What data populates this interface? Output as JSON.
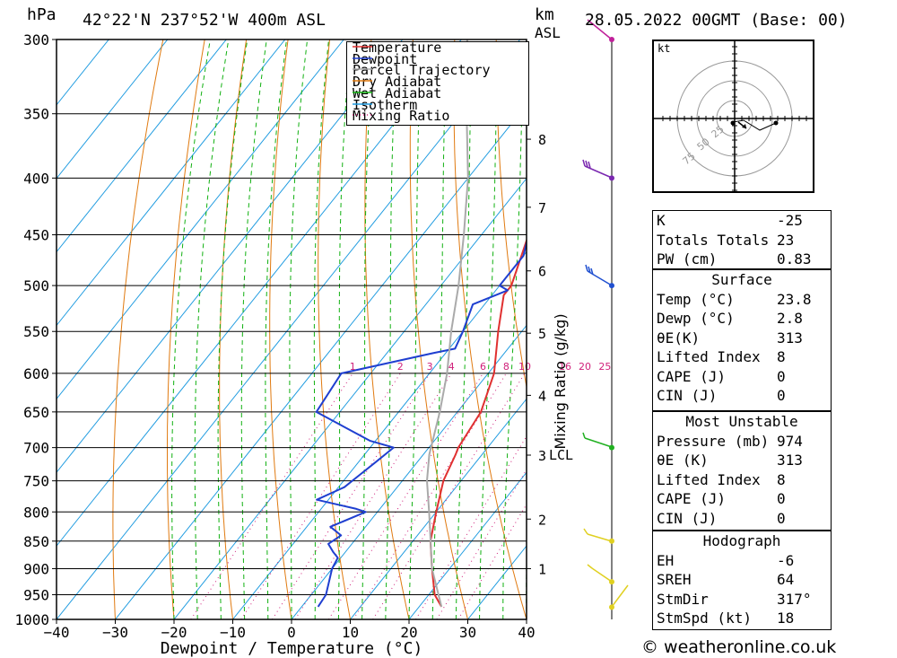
{
  "header": {
    "pressure_unit": "hPa",
    "location": "42°22'N  237°52'W  400m  ASL",
    "km_label": "km",
    "asl_label": "ASL",
    "datetime": "28.05.2022  00GMT  (Base: 00)"
  },
  "legend": [
    "Temperature",
    "Dewpoint",
    "Parcel Trajectory",
    "Dry Adiabat",
    "Wet Adiabat",
    "Isotherm",
    "Mixing Ratio"
  ],
  "colors": {
    "temperature": "#e03030",
    "dewpoint": "#1f3fd0",
    "parcel": "#aaaaaa",
    "dry_adiabat": "#e07a10",
    "wet_adiabat": "#10b010",
    "isotherm": "#1e9be0",
    "mixing_ratio": "#d0207a"
  },
  "hodograph": {
    "unit": "kt",
    "ring_labels": [
      "25",
      "50",
      "75"
    ]
  },
  "indices": {
    "k": {
      "label": "K",
      "value": "-25"
    },
    "tt": {
      "label": "Totals Totals",
      "value": "23"
    },
    "pw": {
      "label": "PW (cm)",
      "value": "0.83"
    },
    "surface": {
      "title": "Surface",
      "rows": [
        [
          "Temp (°C)",
          "23.8"
        ],
        [
          "Dewp (°C)",
          "2.8"
        ],
        [
          "θE(K)",
          "313"
        ],
        [
          "Lifted Index",
          "8"
        ],
        [
          "CAPE (J)",
          "0"
        ],
        [
          "CIN (J)",
          "0"
        ]
      ]
    },
    "most_unstable": {
      "title": "Most Unstable",
      "rows": [
        [
          "Pressure (mb)",
          "974"
        ],
        [
          "θE (K)",
          "313"
        ],
        [
          "Lifted Index",
          "8"
        ],
        [
          "CAPE (J)",
          "0"
        ],
        [
          "CIN (J)",
          "0"
        ]
      ]
    },
    "hodograph": {
      "title": "Hodograph",
      "rows": [
        [
          "EH",
          "-6"
        ],
        [
          "SREH",
          "64"
        ],
        [
          "StmDir",
          "317°"
        ],
        [
          "StmSpd (kt)",
          "18"
        ]
      ]
    }
  },
  "footer": "© weatheronline.co.uk",
  "chart_data": {
    "type": "line",
    "xlabel": "Dewpoint / Temperature (°C)",
    "ylabel": "hPa",
    "right_label": "Mixing Ratio (g/kg)",
    "xlim": [
      -40,
      40
    ],
    "ylim": [
      1000,
      300
    ],
    "x_ticks": [
      "−40",
      "−30",
      "−20",
      "−10",
      "0",
      "10",
      "20",
      "30",
      "40"
    ],
    "pressure_levels": [
      300,
      350,
      400,
      450,
      500,
      550,
      600,
      650,
      700,
      750,
      800,
      850,
      900,
      950,
      1000
    ],
    "km_ticks": [
      "1",
      "2",
      "3",
      "4",
      "5",
      "6",
      "7",
      "8"
    ],
    "km_pressures": [
      900,
      812,
      711,
      628,
      552,
      485,
      425,
      369
    ],
    "lcl_label": "LCL",
    "lcl_pressure": 710,
    "mixing_ratio_labels": [
      "1",
      "2",
      "3",
      "4",
      "6",
      "8",
      "10",
      "16",
      "20",
      "25"
    ],
    "series": [
      {
        "name": "Temperature",
        "p": [
          974,
          950,
          900,
          850,
          800,
          750,
          710,
          700,
          650,
          600,
          550,
          510,
          500,
          450,
          400,
          350,
          300
        ],
        "t": [
          23.8,
          21,
          17,
          13,
          10,
          7,
          5.5,
          5,
          4,
          1,
          -4,
          -8,
          -8,
          -12,
          -18,
          -27,
          -36
        ]
      },
      {
        "name": "Dewpoint",
        "p": [
          974,
          950,
          900,
          880,
          870,
          855,
          840,
          825,
          800,
          795,
          780,
          760,
          740,
          720,
          700,
          690,
          650,
          600,
          575,
          570,
          550,
          520,
          505,
          500,
          470,
          450,
          400,
          350,
          320,
          300
        ],
        "t": [
          2.8,
          2.5,
          0,
          -0.5,
          -2,
          -4,
          -3,
          -6,
          -2,
          -4,
          -12,
          -9,
          -8,
          -7,
          -6,
          -11,
          -24,
          -25,
          -12,
          -9,
          -10,
          -12,
          -8,
          -10,
          -10,
          -12,
          -16,
          -17,
          -18,
          -20
        ]
      },
      {
        "name": "Parcel Trajectory",
        "p": [
          974,
          900,
          800,
          750,
          710,
          650,
          600,
          550,
          500,
          450,
          400,
          350,
          300
        ],
        "t": [
          23.8,
          17,
          8.8,
          4.2,
          1,
          -3,
          -7,
          -12,
          -17,
          -23,
          -30,
          -39,
          -49
        ]
      }
    ]
  }
}
